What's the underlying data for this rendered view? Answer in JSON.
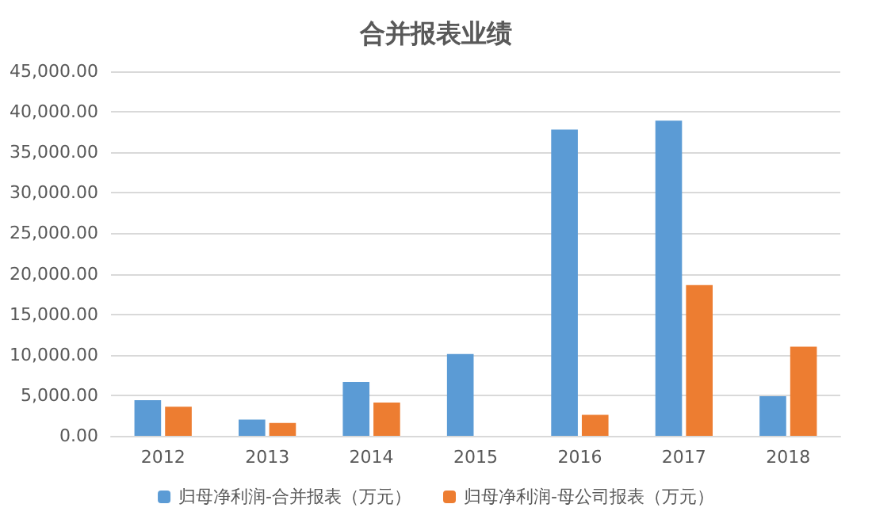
{
  "chart_data": {
    "type": "bar",
    "title": "合并报表业绩",
    "categories": [
      "2012",
      "2013",
      "2014",
      "2015",
      "2016",
      "2017",
      "2018"
    ],
    "series": [
      {
        "name": "归母净利润-合并报表（万元）",
        "color": "#5b9bd5",
        "values": [
          4400,
          2000,
          6650,
          10100,
          37800,
          38900,
          4900
        ]
      },
      {
        "name": "归母净利润-母公司报表（万元）",
        "color": "#ed7d31",
        "values": [
          3600,
          1600,
          4100,
          null,
          2600,
          18600,
          11000
        ]
      }
    ],
    "ylim": [
      0,
      45000
    ],
    "yticks": [
      {
        "value": 0,
        "label": "0.00"
      },
      {
        "value": 5000,
        "label": "5,000.00"
      },
      {
        "value": 10000,
        "label": "10,000.00"
      },
      {
        "value": 15000,
        "label": "15,000.00"
      },
      {
        "value": 20000,
        "label": "20,000.00"
      },
      {
        "value": 25000,
        "label": "25,000.00"
      },
      {
        "value": 30000,
        "label": "30,000.00"
      },
      {
        "value": 35000,
        "label": "35,000.00"
      },
      {
        "value": 40000,
        "label": "40,000.00"
      },
      {
        "value": 45000,
        "label": "45,000.00"
      }
    ],
    "grid": "y",
    "legend": "bottom"
  }
}
